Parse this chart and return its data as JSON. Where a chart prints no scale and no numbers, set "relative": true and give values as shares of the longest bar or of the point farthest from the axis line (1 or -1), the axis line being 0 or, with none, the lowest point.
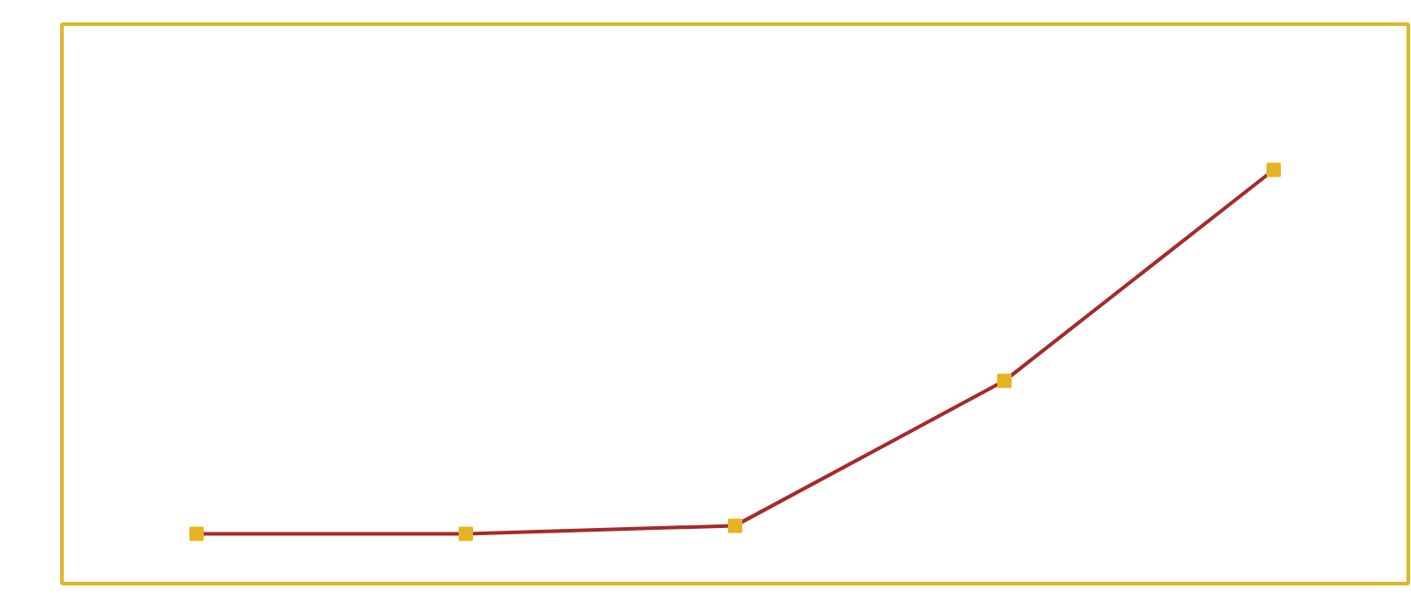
{
  "chart_data": {
    "type": "line",
    "relative": true,
    "categories": [
      null,
      null,
      null,
      null,
      null
    ],
    "marker": "square",
    "grid": false,
    "series": [
      {
        "color": "#a52a2a",
        "colors": [
          "#e6b422",
          "#e6b422",
          "#e6b422",
          "#e6b422",
          "#e6b422"
        ],
        "values": [
          0.12,
          0.12,
          0.14,
          0.49,
          1
        ]
      }
    ]
  }
}
